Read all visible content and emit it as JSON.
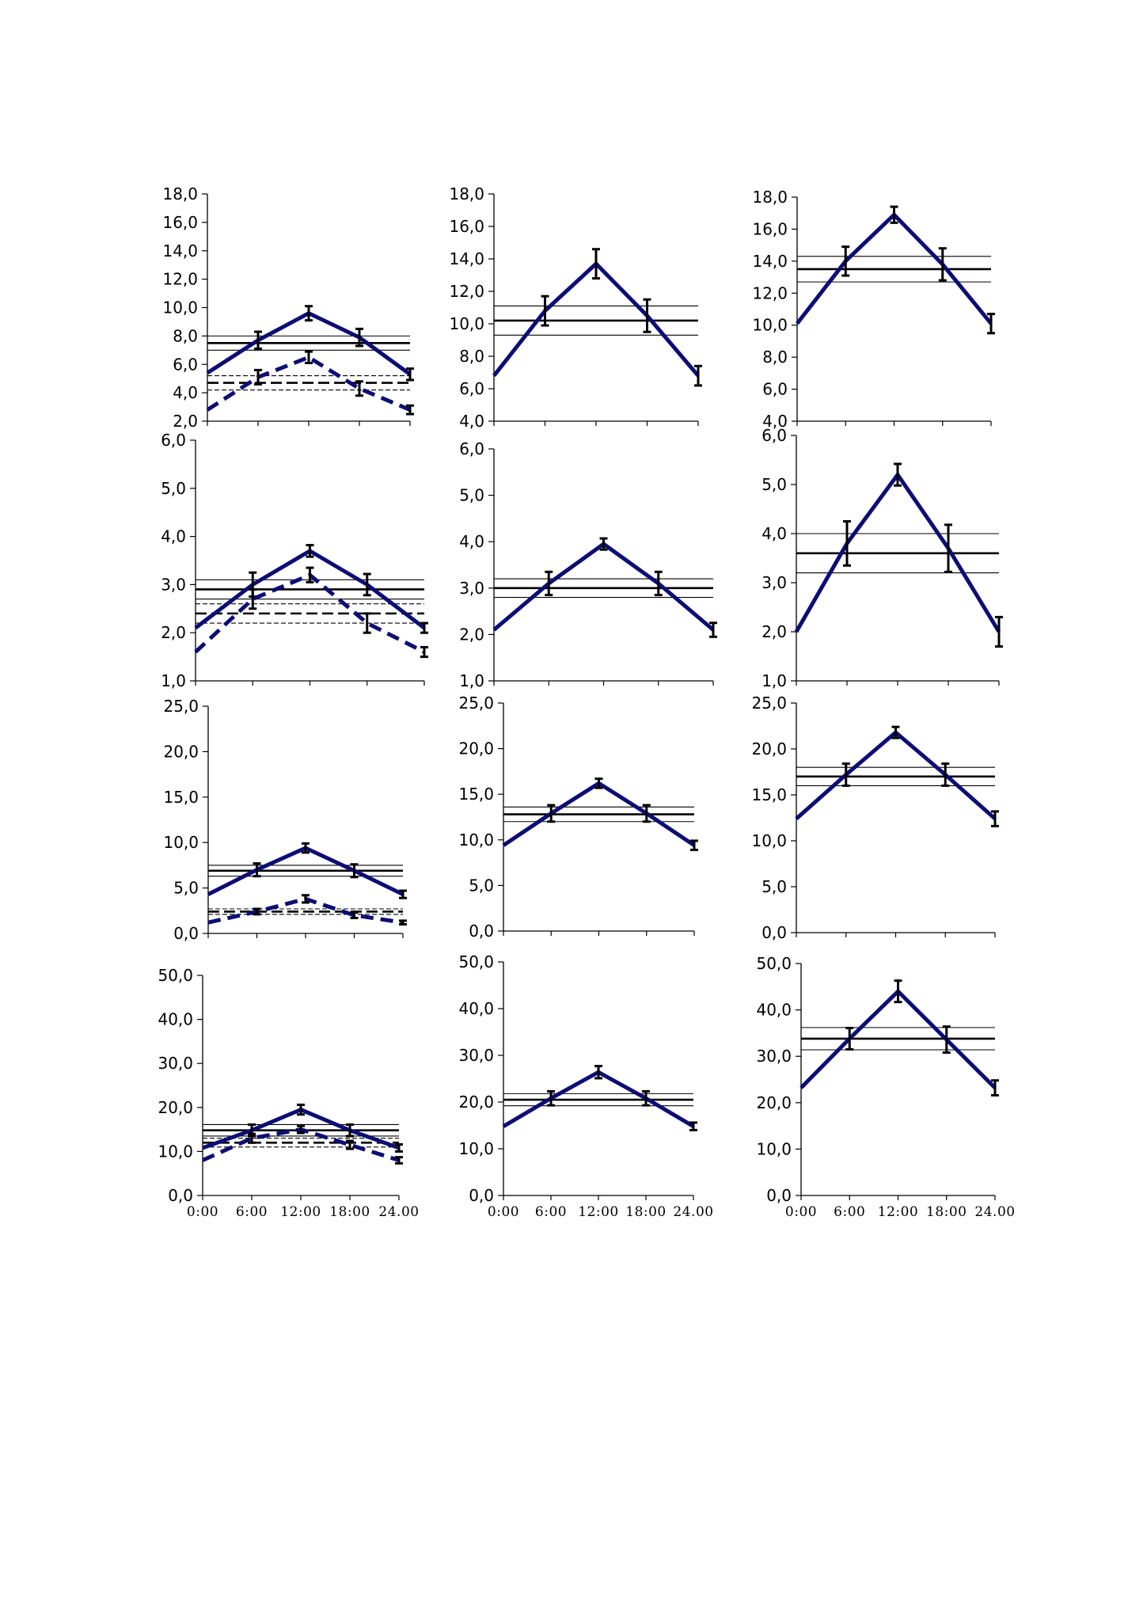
{
  "chart_data": [
    {
      "type": "line",
      "x": [
        "0:00",
        "6:00",
        "12:00",
        "18:00",
        "24.00"
      ],
      "ylim": [
        2,
        18
      ],
      "yticks": [
        "2,0",
        "4,0",
        "6,0",
        "8,0",
        "10,0",
        "12,0",
        "14,0",
        "16,0",
        "18,0"
      ],
      "show_x_labels": false,
      "series": [
        {
          "style": "solid",
          "values": [
            5.4,
            7.7,
            9.6,
            7.9,
            5.3
          ],
          "errors": [
            0,
            0.6,
            0.5,
            0.6,
            0.4
          ]
        },
        {
          "style": "dashed",
          "values": [
            2.8,
            5.1,
            6.5,
            4.3,
            2.8
          ],
          "errors": [
            0,
            0.5,
            0.4,
            0.5,
            0.3
          ]
        }
      ],
      "bands": [
        {
          "style": "solid",
          "mean": 7.5,
          "lower": 7.0,
          "upper": 8.0
        },
        {
          "style": "dashed",
          "mean": 4.7,
          "lower": 4.2,
          "upper": 5.2
        }
      ]
    },
    {
      "type": "line",
      "x": [
        "0:00",
        "6:00",
        "12:00",
        "18:00",
        "24.00"
      ],
      "ylim": [
        4,
        18
      ],
      "yticks": [
        "4,0",
        "6,0",
        "8,0",
        "10,0",
        "12,0",
        "14,0",
        "16,0",
        "18,0"
      ],
      "show_x_labels": false,
      "series": [
        {
          "style": "solid",
          "values": [
            6.8,
            10.8,
            13.7,
            10.5,
            6.8
          ],
          "errors": [
            0,
            0.9,
            0.9,
            1.0,
            0.6
          ]
        }
      ],
      "bands": [
        {
          "style": "solid",
          "mean": 10.2,
          "lower": 9.3,
          "upper": 11.1
        }
      ]
    },
    {
      "type": "line",
      "x": [
        "0:00",
        "6:00",
        "12:00",
        "18:00",
        "24.00"
      ],
      "ylim": [
        4,
        18
      ],
      "yticks": [
        "4,0",
        "6,0",
        "8,0",
        "10,0",
        "12,0",
        "14,0",
        "16,0",
        "18,0"
      ],
      "show_x_labels": false,
      "series": [
        {
          "style": "solid",
          "values": [
            10.1,
            14.0,
            16.9,
            13.8,
            10.1
          ],
          "errors": [
            0,
            0.9,
            0.5,
            1.0,
            0.6
          ]
        }
      ],
      "bands": [
        {
          "style": "solid",
          "mean": 13.5,
          "lower": 12.7,
          "upper": 14.3
        }
      ]
    },
    {
      "type": "line",
      "x": [
        "0:00",
        "6:00",
        "12:00",
        "18:00",
        "24.00"
      ],
      "ylim": [
        1,
        6
      ],
      "yticks": [
        "1,0",
        "2,0",
        "3,0",
        "4,0",
        "5,0",
        "6,0"
      ],
      "show_x_labels": false,
      "series": [
        {
          "style": "solid",
          "values": [
            2.1,
            3.0,
            3.7,
            3.0,
            2.1
          ],
          "errors": [
            0,
            0.25,
            0.12,
            0.22,
            0.1
          ]
        },
        {
          "style": "dashed",
          "values": [
            1.6,
            2.7,
            3.2,
            2.2,
            1.6
          ],
          "errors": [
            0,
            0.2,
            0.15,
            0.2,
            0.1
          ]
        }
      ],
      "bands": [
        {
          "style": "solid",
          "mean": 2.9,
          "lower": 2.7,
          "upper": 3.1
        },
        {
          "style": "dashed",
          "mean": 2.4,
          "lower": 2.2,
          "upper": 2.6
        }
      ]
    },
    {
      "type": "line",
      "x": [
        "0:00",
        "6:00",
        "12:00",
        "18:00",
        "24.00"
      ],
      "ylim": [
        1,
        6
      ],
      "yticks": [
        "1,0",
        "2,0",
        "3,0",
        "4,0",
        "5,0",
        "6,0"
      ],
      "show_x_labels": false,
      "series": [
        {
          "style": "solid",
          "values": [
            2.1,
            3.1,
            3.95,
            3.1,
            2.1
          ],
          "errors": [
            0,
            0.25,
            0.12,
            0.25,
            0.15
          ]
        }
      ],
      "bands": [
        {
          "style": "solid",
          "mean": 3.0,
          "lower": 2.8,
          "upper": 3.2
        }
      ]
    },
    {
      "type": "line",
      "x": [
        "0:00",
        "6:00",
        "12:00",
        "18:00",
        "24.00"
      ],
      "ylim": [
        1,
        6
      ],
      "yticks": [
        "1,0",
        "2,0",
        "3,0",
        "4,0",
        "5,0",
        "6,0"
      ],
      "show_x_labels": false,
      "series": [
        {
          "style": "solid",
          "values": [
            2.0,
            3.8,
            5.2,
            3.7,
            2.0
          ],
          "errors": [
            0,
            0.45,
            0.22,
            0.48,
            0.3
          ]
        }
      ],
      "bands": [
        {
          "style": "solid",
          "mean": 3.6,
          "lower": 3.2,
          "upper": 4.0
        }
      ]
    },
    {
      "type": "line",
      "x": [
        "0:00",
        "6:00",
        "12:00",
        "18:00",
        "24.00"
      ],
      "ylim": [
        0,
        25
      ],
      "yticks": [
        "0,0",
        "5,0",
        "10,0",
        "15,0",
        "20,0",
        "25,0"
      ],
      "show_x_labels": false,
      "series": [
        {
          "style": "solid",
          "values": [
            4.3,
            7.0,
            9.4,
            6.9,
            4.3
          ],
          "errors": [
            0,
            0.7,
            0.5,
            0.7,
            0.4
          ]
        },
        {
          "style": "dashed",
          "values": [
            1.2,
            2.4,
            3.8,
            2.0,
            1.2
          ],
          "errors": [
            0,
            0.3,
            0.4,
            0.3,
            0.2
          ]
        }
      ],
      "bands": [
        {
          "style": "solid",
          "mean": 6.9,
          "lower": 6.3,
          "upper": 7.5
        },
        {
          "style": "dashed",
          "mean": 2.4,
          "lower": 2.1,
          "upper": 2.7
        }
      ]
    },
    {
      "type": "line",
      "x": [
        "0:00",
        "6:00",
        "12:00",
        "18:00",
        "24.00"
      ],
      "ylim": [
        0,
        25
      ],
      "yticks": [
        "0,0",
        "5,0",
        "10,0",
        "15,0",
        "20,0",
        "25,0"
      ],
      "show_x_labels": false,
      "series": [
        {
          "style": "solid",
          "values": [
            9.4,
            12.9,
            16.2,
            12.9,
            9.4
          ],
          "errors": [
            0,
            0.9,
            0.5,
            0.9,
            0.5
          ]
        }
      ],
      "bands": [
        {
          "style": "solid",
          "mean": 12.8,
          "lower": 12.0,
          "upper": 13.6
        }
      ]
    },
    {
      "type": "line",
      "x": [
        "0:00",
        "6:00",
        "12:00",
        "18:00",
        "24.00"
      ],
      "ylim": [
        0,
        25
      ],
      "yticks": [
        "0,0",
        "5,0",
        "10,0",
        "15,0",
        "20,0",
        "25,0"
      ],
      "show_x_labels": false,
      "series": [
        {
          "style": "solid",
          "values": [
            12.4,
            17.2,
            21.8,
            17.2,
            12.4
          ],
          "errors": [
            0,
            1.2,
            0.6,
            1.2,
            0.8
          ]
        }
      ],
      "bands": [
        {
          "style": "solid",
          "mean": 17.0,
          "lower": 16.0,
          "upper": 18.0
        }
      ]
    },
    {
      "type": "line",
      "x": [
        "0:00",
        "6:00",
        "12:00",
        "18:00",
        "24.00"
      ],
      "ylim": [
        0,
        50
      ],
      "yticks": [
        "0,0",
        "10,0",
        "20,0",
        "30,0",
        "40,0",
        "50,0"
      ],
      "show_x_labels": true,
      "series": [
        {
          "style": "solid",
          "values": [
            10.8,
            14.8,
            19.5,
            14.8,
            10.8
          ],
          "errors": [
            0,
            1.3,
            1.1,
            1.3,
            0.8
          ]
        },
        {
          "style": "dashed",
          "values": [
            8.0,
            13.0,
            15.0,
            11.5,
            8.0
          ],
          "errors": [
            0,
            1.0,
            0.8,
            0.9,
            0.7
          ]
        }
      ],
      "bands": [
        {
          "style": "solid",
          "mean": 14.8,
          "lower": 13.5,
          "upper": 16.1
        },
        {
          "style": "dashed",
          "mean": 12.0,
          "lower": 11.0,
          "upper": 13.0
        }
      ]
    },
    {
      "type": "line",
      "x": [
        "0:00",
        "6:00",
        "12:00",
        "18:00",
        "24.00"
      ],
      "ylim": [
        0,
        50
      ],
      "yticks": [
        "0,0",
        "10,0",
        "20,0",
        "30,0",
        "40,0",
        "50,0"
      ],
      "show_x_labels": true,
      "x_tick_labels": [
        "0:00",
        "6:00",
        "12:00",
        "18:00",
        "24.00"
      ],
      "series": [
        {
          "style": "solid",
          "values": [
            14.8,
            20.8,
            26.4,
            20.8,
            14.8
          ],
          "errors": [
            0,
            1.5,
            1.3,
            1.5,
            0.8
          ]
        }
      ],
      "bands": [
        {
          "style": "solid",
          "mean": 20.5,
          "lower": 19.2,
          "upper": 21.8
        }
      ]
    },
    {
      "type": "line",
      "x": [
        "0:00",
        "6:00",
        "12:00",
        "18:00",
        "24.00"
      ],
      "ylim": [
        0,
        50
      ],
      "yticks": [
        "0,0",
        "10,0",
        "20,0",
        "30,0",
        "40,0",
        "50,0"
      ],
      "show_x_labels": true,
      "series": [
        {
          "style": "solid",
          "values": [
            23.2,
            33.8,
            44.0,
            33.6,
            23.2
          ],
          "errors": [
            0,
            2.3,
            2.3,
            2.8,
            1.6
          ]
        }
      ],
      "bands": [
        {
          "style": "solid",
          "mean": 33.8,
          "lower": 31.4,
          "upper": 36.2
        }
      ]
    }
  ],
  "colors": {
    "series": "#0d0d75",
    "band": "#000000",
    "axis": "#000000"
  }
}
